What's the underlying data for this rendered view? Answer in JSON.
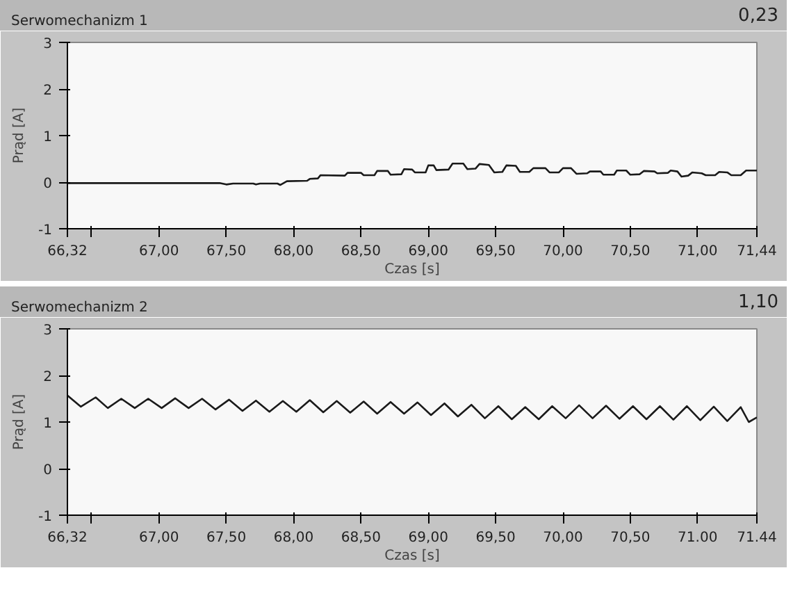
{
  "chart_data": [
    {
      "type": "line",
      "title": "Serwomechanizm 1",
      "xlabel": "Czas [s]",
      "ylabel": "Prąd [A]",
      "annotations": [
        "0,23"
      ],
      "grid": false,
      "xlim": [
        66.32,
        71.44
      ],
      "ylim": [
        -1,
        3
      ],
      "xticks": [
        {
          "value": 66.32,
          "label": "66,32"
        },
        {
          "value": 66.5,
          "label": null
        },
        {
          "value": 67,
          "label": "67,00"
        },
        {
          "value": 67.5,
          "label": "67,50"
        },
        {
          "value": 68,
          "label": "68,00"
        },
        {
          "value": 68.5,
          "label": "68,50"
        },
        {
          "value": 69,
          "label": "69,00"
        },
        {
          "value": 69.5,
          "label": "69,50"
        },
        {
          "value": 70,
          "label": "70,00"
        },
        {
          "value": 70.5,
          "label": "70,50"
        },
        {
          "value": 71,
          "label": "71,00"
        },
        {
          "value": 71.44,
          "label": "71,44"
        }
      ],
      "yticks": [
        -1,
        0,
        1,
        2,
        3
      ],
      "x": [
        66.32,
        67.45,
        67.5,
        67.55,
        67.7,
        67.72,
        67.75,
        67.88,
        67.9,
        67.95,
        68.1,
        68.12,
        68.18,
        68.2,
        68.38,
        68.4,
        68.5,
        68.52,
        68.6,
        68.62,
        68.7,
        68.72,
        68.8,
        68.82,
        68.88,
        68.9,
        68.98,
        69.0,
        69.04,
        69.06,
        69.15,
        69.18,
        69.26,
        69.29,
        69.35,
        69.38,
        69.45,
        69.49,
        69.55,
        69.58,
        69.65,
        69.68,
        69.75,
        69.78,
        69.87,
        69.9,
        69.97,
        70.0,
        70.06,
        70.1,
        70.18,
        70.2,
        70.28,
        70.3,
        70.38,
        70.4,
        70.47,
        70.5,
        70.57,
        70.6,
        70.68,
        70.7,
        70.78,
        70.8,
        70.85,
        70.88,
        70.93,
        70.96,
        71.03,
        71.06,
        71.13,
        71.16,
        71.22,
        71.25,
        71.32,
        71.36,
        71.44
      ],
      "series": [
        {
          "color": "#1a1a1a",
          "values": [
            -0.02,
            -0.02,
            -0.05,
            -0.03,
            -0.03,
            -0.05,
            -0.03,
            -0.03,
            -0.06,
            0.02,
            0.03,
            0.07,
            0.08,
            0.15,
            0.14,
            0.2,
            0.2,
            0.15,
            0.15,
            0.24,
            0.24,
            0.16,
            0.17,
            0.28,
            0.27,
            0.21,
            0.21,
            0.36,
            0.36,
            0.26,
            0.27,
            0.4,
            0.4,
            0.28,
            0.29,
            0.39,
            0.37,
            0.21,
            0.22,
            0.36,
            0.35,
            0.22,
            0.22,
            0.3,
            0.3,
            0.21,
            0.21,
            0.3,
            0.3,
            0.18,
            0.19,
            0.23,
            0.23,
            0.16,
            0.16,
            0.25,
            0.25,
            0.16,
            0.17,
            0.24,
            0.23,
            0.19,
            0.2,
            0.25,
            0.23,
            0.12,
            0.14,
            0.21,
            0.19,
            0.15,
            0.15,
            0.22,
            0.21,
            0.15,
            0.15,
            0.25,
            0.25
          ]
        }
      ]
    },
    {
      "type": "line",
      "title": "Serwomechanizm 2",
      "xlabel": "Czas [s]",
      "ylabel": "Prąd [A]",
      "annotations": [
        "1,10"
      ],
      "grid": false,
      "xlim": [
        66.32,
        71.44
      ],
      "ylim": [
        -1,
        3
      ],
      "xticks": [
        {
          "value": 66.32,
          "label": "66,32"
        },
        {
          "value": 66.5,
          "label": null
        },
        {
          "value": 67,
          "label": "67,00"
        },
        {
          "value": 67.5,
          "label": "67,50"
        },
        {
          "value": 68,
          "label": "68,00"
        },
        {
          "value": 68.5,
          "label": "68,50"
        },
        {
          "value": 69,
          "label": "69,00"
        },
        {
          "value": 69.5,
          "label": "69,50"
        },
        {
          "value": 70,
          "label": "70,00"
        },
        {
          "value": 70.5,
          "label": "70,50"
        },
        {
          "value": 71,
          "label": "71.00"
        },
        {
          "value": 71.44,
          "label": "71.44"
        }
      ],
      "yticks": [
        -1,
        0,
        1,
        2,
        3
      ],
      "x": [
        66.32,
        66.42,
        66.53,
        66.62,
        66.72,
        66.82,
        66.92,
        67.02,
        67.12,
        67.22,
        67.32,
        67.42,
        67.52,
        67.62,
        67.72,
        67.82,
        67.92,
        68.02,
        68.12,
        68.22,
        68.32,
        68.42,
        68.52,
        68.62,
        68.72,
        68.82,
        68.92,
        69.02,
        69.12,
        69.22,
        69.32,
        69.42,
        69.52,
        69.62,
        69.72,
        69.82,
        69.92,
        70.02,
        70.12,
        70.22,
        70.32,
        70.42,
        70.52,
        70.62,
        70.72,
        70.82,
        70.92,
        71.02,
        71.12,
        71.22,
        71.32,
        71.38,
        71.44
      ],
      "series": [
        {
          "color": "#1a1a1a",
          "values": [
            1.57,
            1.33,
            1.53,
            1.3,
            1.5,
            1.3,
            1.5,
            1.3,
            1.51,
            1.3,
            1.5,
            1.27,
            1.48,
            1.24,
            1.46,
            1.22,
            1.45,
            1.22,
            1.47,
            1.21,
            1.45,
            1.2,
            1.44,
            1.18,
            1.43,
            1.18,
            1.42,
            1.15,
            1.4,
            1.12,
            1.37,
            1.08,
            1.34,
            1.06,
            1.32,
            1.06,
            1.34,
            1.08,
            1.36,
            1.08,
            1.35,
            1.07,
            1.34,
            1.06,
            1.34,
            1.05,
            1.34,
            1.04,
            1.33,
            1.02,
            1.32,
            1.0,
            1.1
          ]
        }
      ]
    }
  ]
}
